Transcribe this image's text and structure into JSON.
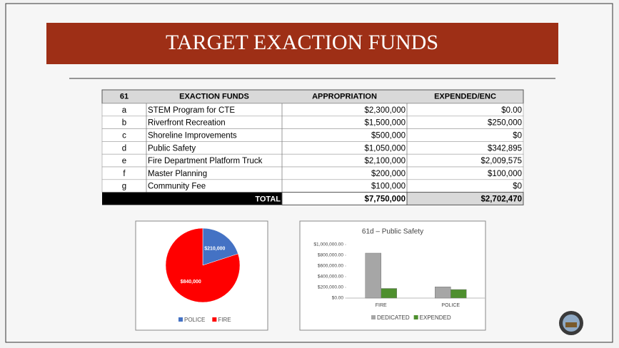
{
  "title": "TARGET EXACTION FUNDS",
  "table": {
    "header": [
      "61",
      "EXACTION FUNDS",
      "APPROPRIATION",
      "EXPENDED/ENC"
    ],
    "rows": [
      [
        "a",
        "STEM Program for CTE",
        "$2,300,000",
        "$0.00"
      ],
      [
        "b",
        "Riverfront Recreation",
        "$1,500,000",
        "$250,000"
      ],
      [
        "c",
        "Shoreline Improvements",
        "$500,000",
        "$0"
      ],
      [
        "d",
        "Public Safety",
        "$1,050,000",
        "$342,895"
      ],
      [
        "e",
        "Fire Department Platform Truck",
        "$2,100,000",
        "$2,009,575"
      ],
      [
        "f",
        "Master Planning",
        "$200,000",
        "$100,000"
      ],
      [
        "g",
        "Community Fee",
        "$100,000",
        "$0"
      ]
    ],
    "total": [
      "TOTAL",
      "$7,750,000",
      "$2,702,470"
    ]
  },
  "chart_data": [
    {
      "type": "pie",
      "categories": [
        "POLICE",
        "FIRE"
      ],
      "values": [
        210000,
        840000
      ],
      "value_labels": [
        "$210,000",
        "$840,000"
      ],
      "colors": [
        "#4472c4",
        "#ff0000"
      ]
    },
    {
      "type": "bar",
      "title": "61d – Public Safety",
      "categories": [
        "FIRE",
        "POLICE"
      ],
      "series": [
        {
          "name": "DEDICATED",
          "color": "#a6a6a6",
          "values": [
            840000,
            210000
          ]
        },
        {
          "name": "EXPENDED",
          "color": "#4e8f2e",
          "values": [
            180000,
            160000
          ]
        }
      ],
      "ylim": [
        0,
        1000000
      ],
      "yticks": [
        {
          "value": 0,
          "label": "$0.00"
        },
        {
          "value": 200000,
          "label": "$200,000.00"
        },
        {
          "value": 400000,
          "label": "$400,000.00"
        },
        {
          "value": 600000,
          "label": "$600,000.00"
        },
        {
          "value": 800000,
          "label": "$800,000.00"
        },
        {
          "value": 1000000,
          "label": "$1,000,000.00"
        }
      ]
    }
  ]
}
